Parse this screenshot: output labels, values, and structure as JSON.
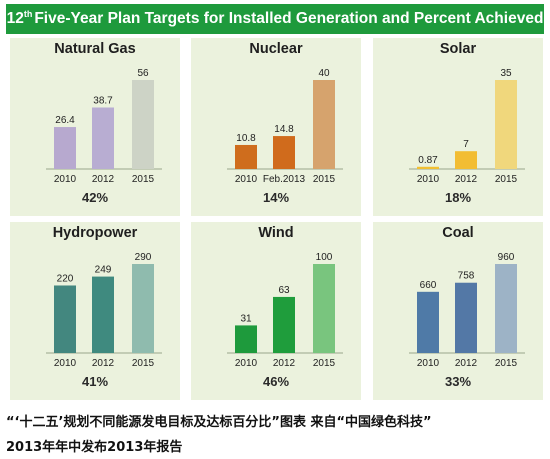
{
  "header": {
    "title_num": "12",
    "title_sup": "th",
    "title_rest": "Five-Year Plan Targets for Installed Generation and Percent Achieved"
  },
  "chart_data": [
    {
      "type": "bar",
      "title": "Natural Gas",
      "categories": [
        "2010",
        "2012",
        "2015"
      ],
      "values": [
        26.4,
        38.7,
        56
      ],
      "value_labels": [
        "26.4",
        "38.7",
        "56"
      ],
      "colors": [
        "#b7a9cf",
        "#b8add2",
        "#cdd3c6"
      ],
      "percent": "42%"
    },
    {
      "type": "bar",
      "title": "Nuclear",
      "categories": [
        "2010",
        "Feb.2013",
        "2015"
      ],
      "values": [
        10.8,
        14.8,
        40
      ],
      "value_labels": [
        "10.8",
        "14.8",
        "40"
      ],
      "colors": [
        "#cf6d1d",
        "#d06b1c",
        "#d6a36d"
      ],
      "percent": "14%"
    },
    {
      "type": "bar",
      "title": "Solar",
      "categories": [
        "2010",
        "2012",
        "2015"
      ],
      "values": [
        0.87,
        7,
        35
      ],
      "value_labels": [
        "0.87",
        "7",
        "35"
      ],
      "colors": [
        "#f1bf32",
        "#f2bd33",
        "#f0d77c"
      ],
      "percent": "18%"
    },
    {
      "type": "bar",
      "title": "Hydropower",
      "categories": [
        "2010",
        "2012",
        "2015"
      ],
      "values": [
        220,
        249,
        290
      ],
      "value_labels": [
        "220",
        "249",
        "290"
      ],
      "colors": [
        "#43877f",
        "#3f8a7f",
        "#8fbbae"
      ],
      "percent": "41%"
    },
    {
      "type": "bar",
      "title": "Wind",
      "categories": [
        "2010",
        "2012",
        "2015"
      ],
      "values": [
        31,
        63,
        100
      ],
      "value_labels": [
        "31",
        "63",
        "100"
      ],
      "colors": [
        "#1e9a3c",
        "#1f9d3c",
        "#79c57e"
      ],
      "percent": "46%"
    },
    {
      "type": "bar",
      "title": "Coal",
      "categories": [
        "2010",
        "2012",
        "2015"
      ],
      "values": [
        660,
        758,
        960
      ],
      "value_labels": [
        "660",
        "758",
        "960"
      ],
      "colors": [
        "#4f7aa7",
        "#5378a6",
        "#9db3c6"
      ],
      "percent": "33%"
    }
  ],
  "caption": {
    "line1": "“‘十二五’规划不同能源发电目标及达标百分比”图表 来自“中国绿色科技”",
    "line2": "2013年年中发布2013年报告"
  }
}
